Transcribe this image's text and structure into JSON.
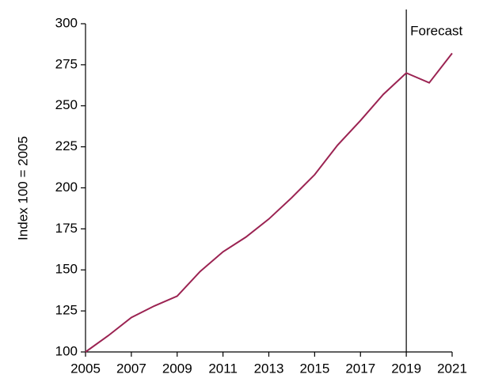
{
  "chart_data": {
    "type": "line",
    "y_label": "Index 100 = 2005",
    "x": [
      2005,
      2006,
      2007,
      2008,
      2009,
      2010,
      2011,
      2012,
      2013,
      2014,
      2015,
      2016,
      2017,
      2018,
      2019,
      2020,
      2021
    ],
    "series": [
      {
        "name": null,
        "color": "#9b2352",
        "values": [
          100,
          110,
          121,
          128,
          134,
          149,
          161,
          170,
          181,
          194,
          208,
          226,
          241,
          257,
          270,
          264,
          282
        ]
      }
    ],
    "xlim": [
      2005,
      2021
    ],
    "xticks": [
      2005,
      2007,
      2009,
      2011,
      2013,
      2015,
      2017,
      2019,
      2021
    ],
    "ylim": [
      100,
      300
    ],
    "yticks": [
      100,
      125,
      150,
      175,
      200,
      225,
      250,
      275,
      300
    ],
    "grid": false,
    "annotations": [
      {
        "text": "Forecast",
        "x": 2019
      }
    ]
  }
}
